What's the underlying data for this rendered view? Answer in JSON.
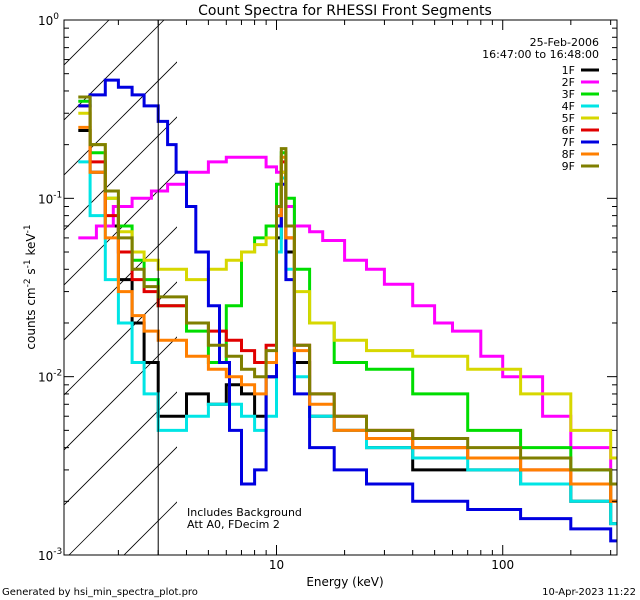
{
  "chart_data": {
    "type": "line",
    "title": "Count Spectra for RHESSI Front Segments",
    "xlabel": "Energy (keV)",
    "ylabel_parts": [
      "counts cm",
      "-2",
      " s",
      "-1",
      " keV",
      "-1"
    ],
    "x_scale": "log",
    "y_scale": "log",
    "xlim": [
      1.15,
      320
    ],
    "ylim": [
      0.001,
      1.0
    ],
    "x_tick_labels": [
      {
        "value": 10,
        "label": "10"
      },
      {
        "value": 100,
        "label": "100"
      }
    ],
    "y_tick_labels": [
      {
        "value": 1.0,
        "base": "10",
        "exp": "0"
      },
      {
        "value": 0.1,
        "base": "10",
        "exp": "-1"
      },
      {
        "value": 0.01,
        "base": "10",
        "exp": "-2"
      },
      {
        "value": 0.001,
        "base": "10",
        "exp": "-3"
      }
    ],
    "grid": false,
    "legend_placement": "top-right",
    "legend_header": [
      "25-Feb-2006",
      "16:47:00 to 16:48:00"
    ],
    "annotations": [
      "Includes Background",
      "Att A0, FDecim 2"
    ],
    "hatched_region_x": [
      1.15,
      3.0
    ],
    "series": [
      {
        "name": "1F",
        "color": "#000000",
        "points": [
          [
            1.33,
            0.24
          ],
          [
            1.5,
            0.14
          ],
          [
            1.75,
            0.07
          ],
          [
            2.0,
            0.035
          ],
          [
            2.3,
            0.02
          ],
          [
            2.6,
            0.012
          ],
          [
            3.0,
            0.006
          ],
          [
            4,
            0.008
          ],
          [
            5,
            0.007
          ],
          [
            6,
            0.009
          ],
          [
            7,
            0.008
          ],
          [
            8,
            0.006
          ],
          [
            9,
            0.01
          ],
          [
            10,
            0.06
          ],
          [
            10.5,
            0.14
          ],
          [
            11,
            0.05
          ],
          [
            12,
            0.012
          ],
          [
            14,
            0.006
          ],
          [
            18,
            0.005
          ],
          [
            25,
            0.004
          ],
          [
            40,
            0.003
          ],
          [
            70,
            0.003
          ],
          [
            120,
            0.0025
          ],
          [
            200,
            0.002
          ],
          [
            300,
            0.0015
          ]
        ]
      },
      {
        "name": "2F",
        "color": "#ff00ff",
        "points": [
          [
            1.33,
            0.06
          ],
          [
            1.6,
            0.07
          ],
          [
            1.9,
            0.09
          ],
          [
            2.3,
            0.1
          ],
          [
            2.8,
            0.11
          ],
          [
            3.3,
            0.12
          ],
          [
            4,
            0.14
          ],
          [
            5,
            0.16
          ],
          [
            6,
            0.17
          ],
          [
            7,
            0.17
          ],
          [
            8,
            0.17
          ],
          [
            9,
            0.15
          ],
          [
            10,
            0.14
          ],
          [
            11,
            0.09
          ],
          [
            12,
            0.07
          ],
          [
            14,
            0.065
          ],
          [
            16,
            0.058
          ],
          [
            20,
            0.045
          ],
          [
            25,
            0.04
          ],
          [
            30,
            0.033
          ],
          [
            40,
            0.025
          ],
          [
            50,
            0.02
          ],
          [
            60,
            0.018
          ],
          [
            80,
            0.013
          ],
          [
            100,
            0.01
          ],
          [
            150,
            0.006
          ],
          [
            200,
            0.004
          ],
          [
            300,
            0.0025
          ]
        ]
      },
      {
        "name": "3F",
        "color": "#00dd00",
        "points": [
          [
            1.33,
            0.35
          ],
          [
            1.5,
            0.18
          ],
          [
            1.75,
            0.1
          ],
          [
            2.0,
            0.07
          ],
          [
            2.3,
            0.045
          ],
          [
            2.6,
            0.035
          ],
          [
            3.0,
            0.025
          ],
          [
            4,
            0.018
          ],
          [
            5,
            0.012
          ],
          [
            6,
            0.025
          ],
          [
            7,
            0.05
          ],
          [
            8,
            0.06
          ],
          [
            9,
            0.07
          ],
          [
            10,
            0.12
          ],
          [
            10.5,
            0.18
          ],
          [
            11,
            0.1
          ],
          [
            12,
            0.04
          ],
          [
            14,
            0.02
          ],
          [
            18,
            0.012
          ],
          [
            25,
            0.011
          ],
          [
            40,
            0.008
          ],
          [
            70,
            0.005
          ],
          [
            120,
            0.004
          ],
          [
            200,
            0.003
          ],
          [
            300,
            0.002
          ]
        ]
      },
      {
        "name": "4F",
        "color": "#00e5e5",
        "points": [
          [
            1.33,
            0.16
          ],
          [
            1.5,
            0.08
          ],
          [
            1.75,
            0.035
          ],
          [
            2.0,
            0.02
          ],
          [
            2.3,
            0.012
          ],
          [
            2.6,
            0.008
          ],
          [
            3.0,
            0.005
          ],
          [
            4,
            0.006
          ],
          [
            5,
            0.007
          ],
          [
            6,
            0.007
          ],
          [
            7,
            0.006
          ],
          [
            8,
            0.005
          ],
          [
            9,
            0.006
          ],
          [
            10,
            0.05
          ],
          [
            10.5,
            0.13
          ],
          [
            11,
            0.04
          ],
          [
            12,
            0.01
          ],
          [
            14,
            0.006
          ],
          [
            18,
            0.005
          ],
          [
            25,
            0.004
          ],
          [
            40,
            0.0035
          ],
          [
            70,
            0.003
          ],
          [
            120,
            0.0025
          ],
          [
            200,
            0.002
          ],
          [
            300,
            0.0015
          ]
        ]
      },
      {
        "name": "5F",
        "color": "#d7d700",
        "points": [
          [
            1.33,
            0.3
          ],
          [
            1.5,
            0.2
          ],
          [
            1.75,
            0.1
          ],
          [
            2.0,
            0.065
          ],
          [
            2.3,
            0.05
          ],
          [
            2.6,
            0.045
          ],
          [
            3.0,
            0.04
          ],
          [
            4,
            0.035
          ],
          [
            5,
            0.04
          ],
          [
            6,
            0.045
          ],
          [
            7,
            0.05
          ],
          [
            8,
            0.055
          ],
          [
            9,
            0.06
          ],
          [
            10,
            0.08
          ],
          [
            10.5,
            0.14
          ],
          [
            11,
            0.06
          ],
          [
            12,
            0.03
          ],
          [
            14,
            0.02
          ],
          [
            18,
            0.016
          ],
          [
            25,
            0.014
          ],
          [
            40,
            0.013
          ],
          [
            70,
            0.011
          ],
          [
            120,
            0.008
          ],
          [
            200,
            0.005
          ],
          [
            300,
            0.0035
          ]
        ]
      },
      {
        "name": "6F",
        "color": "#e00000",
        "points": [
          [
            1.33,
            0.33
          ],
          [
            1.5,
            0.16
          ],
          [
            1.75,
            0.08
          ],
          [
            2.0,
            0.05
          ],
          [
            2.3,
            0.035
          ],
          [
            2.6,
            0.03
          ],
          [
            3.0,
            0.025
          ],
          [
            4,
            0.02
          ],
          [
            5,
            0.018
          ],
          [
            6,
            0.016
          ],
          [
            7,
            0.014
          ],
          [
            8,
            0.012
          ],
          [
            9,
            0.015
          ],
          [
            10,
            0.07
          ],
          [
            10.5,
            0.16
          ],
          [
            11,
            0.06
          ],
          [
            12,
            0.015
          ],
          [
            14,
            0.008
          ],
          [
            18,
            0.006
          ],
          [
            25,
            0.005
          ],
          [
            40,
            0.004
          ],
          [
            70,
            0.0035
          ],
          [
            120,
            0.003
          ],
          [
            200,
            0.0025
          ],
          [
            300,
            0.002
          ]
        ]
      },
      {
        "name": "7F",
        "color": "#0000e0",
        "points": [
          [
            1.33,
            0.33
          ],
          [
            1.5,
            0.38
          ],
          [
            1.75,
            0.46
          ],
          [
            2.0,
            0.42
          ],
          [
            2.3,
            0.38
          ],
          [
            2.6,
            0.33
          ],
          [
            3.0,
            0.27
          ],
          [
            3.3,
            0.2
          ],
          [
            3.6,
            0.14
          ],
          [
            4.0,
            0.09
          ],
          [
            4.4,
            0.05
          ],
          [
            5.0,
            0.025
          ],
          [
            5.6,
            0.012
          ],
          [
            6.2,
            0.005
          ],
          [
            7.0,
            0.0025
          ],
          [
            8,
            0.003
          ],
          [
            9,
            0.01
          ],
          [
            10,
            0.07
          ],
          [
            10.5,
            0.12
          ],
          [
            11,
            0.035
          ],
          [
            12,
            0.008
          ],
          [
            14,
            0.004
          ],
          [
            18,
            0.003
          ],
          [
            25,
            0.0025
          ],
          [
            40,
            0.002
          ],
          [
            70,
            0.0018
          ],
          [
            120,
            0.0016
          ],
          [
            200,
            0.0014
          ],
          [
            300,
            0.0012
          ]
        ]
      },
      {
        "name": "8F",
        "color": "#ff7f00",
        "points": [
          [
            1.33,
            0.25
          ],
          [
            1.5,
            0.14
          ],
          [
            1.75,
            0.06
          ],
          [
            2.0,
            0.03
          ],
          [
            2.3,
            0.022
          ],
          [
            2.6,
            0.018
          ],
          [
            3.0,
            0.016
          ],
          [
            4,
            0.013
          ],
          [
            5,
            0.011
          ],
          [
            6,
            0.01
          ],
          [
            7,
            0.009
          ],
          [
            8,
            0.008
          ],
          [
            9,
            0.012
          ],
          [
            10,
            0.08
          ],
          [
            10.5,
            0.17
          ],
          [
            11,
            0.06
          ],
          [
            12,
            0.014
          ],
          [
            14,
            0.007
          ],
          [
            18,
            0.005
          ],
          [
            25,
            0.0045
          ],
          [
            40,
            0.004
          ],
          [
            70,
            0.0035
          ],
          [
            120,
            0.003
          ],
          [
            200,
            0.0025
          ],
          [
            300,
            0.002
          ]
        ]
      },
      {
        "name": "9F",
        "color": "#7f7f00",
        "points": [
          [
            1.33,
            0.37
          ],
          [
            1.5,
            0.2
          ],
          [
            1.75,
            0.11
          ],
          [
            2.0,
            0.06
          ],
          [
            2.3,
            0.04
          ],
          [
            2.6,
            0.032
          ],
          [
            3.0,
            0.028
          ],
          [
            4,
            0.02
          ],
          [
            5,
            0.015
          ],
          [
            6,
            0.013
          ],
          [
            7,
            0.011
          ],
          [
            8,
            0.01
          ],
          [
            9,
            0.014
          ],
          [
            10,
            0.09
          ],
          [
            10.5,
            0.19
          ],
          [
            11,
            0.07
          ],
          [
            12,
            0.015
          ],
          [
            14,
            0.008
          ],
          [
            18,
            0.006
          ],
          [
            25,
            0.005
          ],
          [
            40,
            0.0045
          ],
          [
            70,
            0.004
          ],
          [
            120,
            0.0035
          ],
          [
            200,
            0.003
          ],
          [
            300,
            0.0025
          ]
        ]
      }
    ]
  },
  "footer": {
    "generated_by": "Generated by hsi_min_spectra_plot.pro",
    "timestamp": "10-Apr-2023 11:22"
  }
}
